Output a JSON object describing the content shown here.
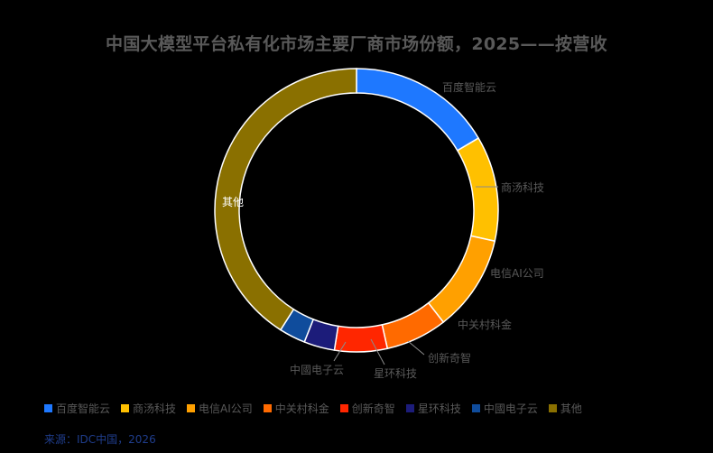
{
  "title": "中国大模型平台私有化市场主要厂商市场份额，2025——按营收",
  "source": "来源：IDC中国，2026",
  "colors": {
    "background": "#000000",
    "text": "#595959",
    "leader_line": "#8c8c8c",
    "source": "#1f3d8c"
  },
  "chart_data": {
    "type": "pie",
    "variant": "donut",
    "title": "中国大模型平台私有化市场主要厂商市场份额，2025——按营收",
    "legend_position": "bottom",
    "data_labels": "category names outside ring",
    "series": [
      {
        "name": "百度智能云",
        "value": 16.5,
        "color": "#1e78ff"
      },
      {
        "name": "商汤科技",
        "value": 12.0,
        "color": "#ffc000"
      },
      {
        "name": "电信AI公司",
        "value": 11.0,
        "color": "#ffa000"
      },
      {
        "name": "中关村科金",
        "value": 7.0,
        "color": "#ff6a00"
      },
      {
        "name": "创新奇智",
        "value": 6.0,
        "color": "#ff2600"
      },
      {
        "name": "星环科技",
        "value": 3.5,
        "color": "#1c1c7a"
      },
      {
        "name": "中國电子云",
        "value": 3.0,
        "color": "#0f4c9c"
      },
      {
        "name": "其他",
        "value": 41.0,
        "color": "#8a7000"
      }
    ]
  }
}
